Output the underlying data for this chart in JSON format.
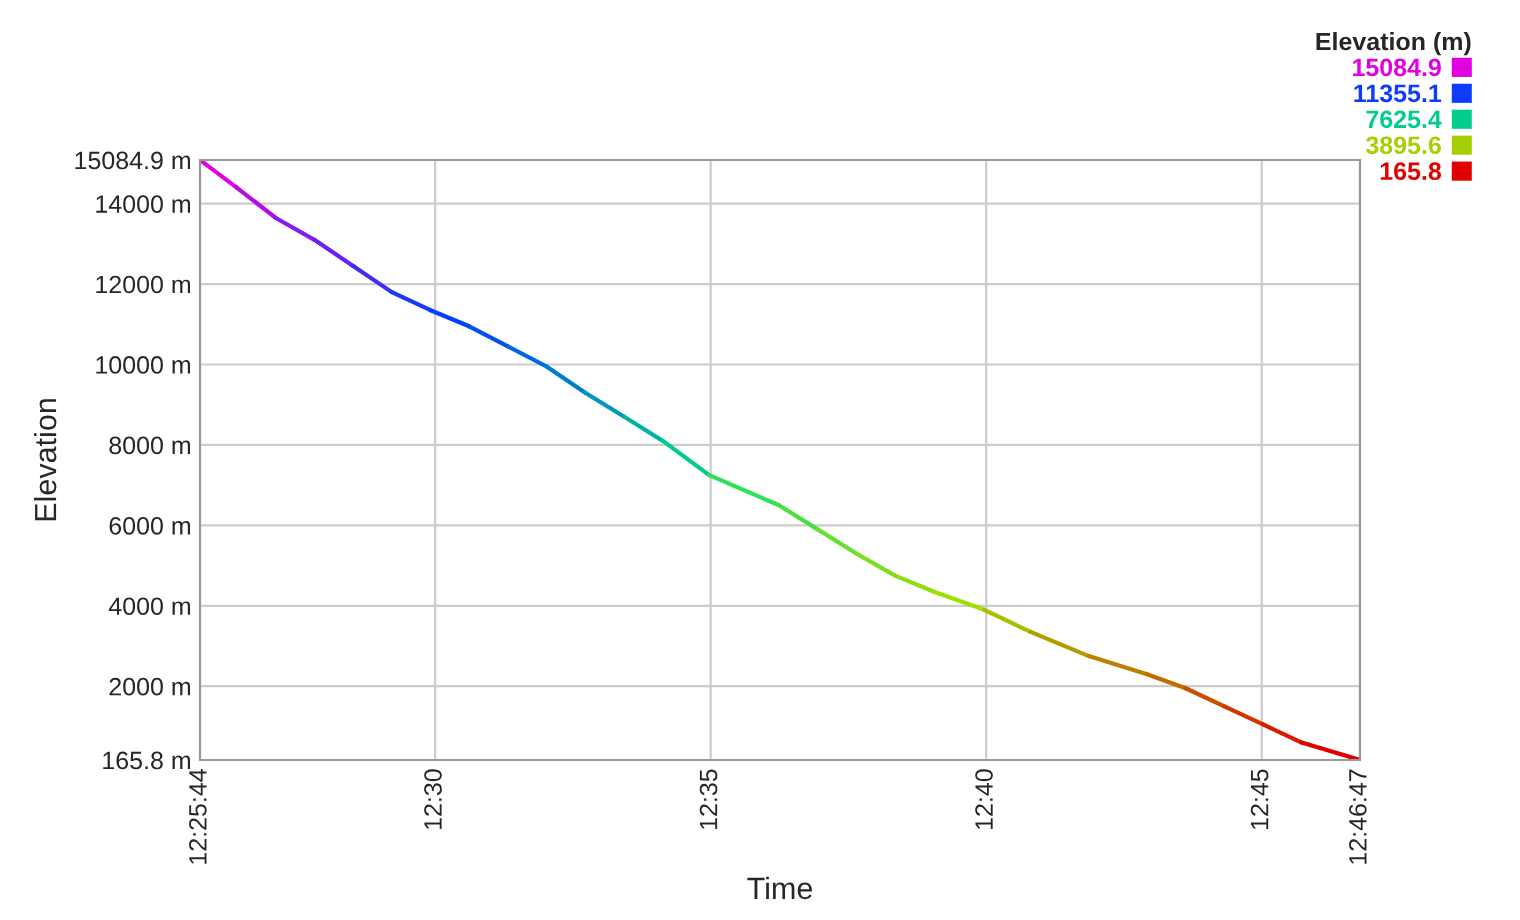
{
  "chart_data": {
    "type": "line",
    "xlabel": "Time",
    "ylabel": "Elevation",
    "clabel": "Elevation (m)",
    "cticks": [
      15084.9,
      11355.1,
      7625.4,
      3895.6,
      165.8
    ],
    "series": [
      {
        "x": [
          12.428889,
          12.44
        ],
        "values": [
          15084.9,
          14400
        ],
        "color": "#e000e0"
      },
      {
        "x": [
          12.44,
          12.4517
        ],
        "values": [
          14400,
          13650
        ],
        "color": "#b70ce6"
      },
      {
        "x": [
          12.4517,
          12.4635
        ],
        "values": [
          13650,
          13100
        ],
        "color": "#8a19ec"
      },
      {
        "x": [
          12.4635,
          12.4752
        ],
        "values": [
          13100,
          12450
        ],
        "color": "#6922f0"
      },
      {
        "x": [
          12.4752,
          12.4869
        ],
        "values": [
          12450,
          11800
        ],
        "color": "#422df6"
      },
      {
        "x": [
          12.4869,
          12.4986
        ],
        "values": [
          11800,
          11350
        ],
        "color": "#1b38fb"
      },
      {
        "x": [
          12.4986,
          12.5103
        ],
        "values": [
          11350,
          10950
        ],
        "color": "#0040ff"
      },
      {
        "x": [
          12.5103,
          12.522
        ],
        "values": [
          10950,
          10450
        ],
        "color": "#0051f1"
      },
      {
        "x": [
          12.522,
          12.5337
        ],
        "values": [
          10450,
          9950
        ],
        "color": "#0067e0"
      },
      {
        "x": [
          12.5337,
          12.5454
        ],
        "values": [
          9950,
          9300
        ],
        "color": "#007ccf"
      },
      {
        "x": [
          12.5454,
          12.5572
        ],
        "values": [
          9300,
          8700
        ],
        "color": "#0098b9"
      },
      {
        "x": [
          12.5572,
          12.5689
        ],
        "values": [
          8700,
          8100
        ],
        "color": "#00b2a5"
      },
      {
        "x": [
          12.5689,
          12.5829
        ],
        "values": [
          8100,
          7250
        ],
        "color": "#00cc90"
      },
      {
        "x": [
          12.5829,
          12.604
        ],
        "values": [
          7250,
          6500
        ],
        "color": "#30e059"
      },
      {
        "x": [
          12.604,
          12.6157
        ],
        "values": [
          6500,
          5900
        ],
        "color": "#4ae045"
      },
      {
        "x": [
          12.6157,
          12.6274
        ],
        "values": [
          5900,
          5300
        ],
        "color": "#64e030"
      },
      {
        "x": [
          12.6274,
          12.6391
        ],
        "values": [
          5300,
          4750
        ],
        "color": "#7be01d"
      },
      {
        "x": [
          12.6391,
          12.6509
        ],
        "values": [
          4750,
          4350
        ],
        "color": "#8de010"
      },
      {
        "x": [
          12.6509,
          12.6661
        ],
        "values": [
          4350,
          3900
        ],
        "color": "#a0e000"
      },
      {
        "x": [
          12.6661,
          12.6801
        ],
        "values": [
          3900,
          3350
        ],
        "color": "#a9bf00"
      },
      {
        "x": [
          12.6801,
          12.6977
        ],
        "values": [
          3350,
          2750
        ],
        "color": "#b49b00"
      },
      {
        "x": [
          12.6977,
          12.7153
        ],
        "values": [
          2750,
          2300
        ],
        "color": "#bb8000"
      },
      {
        "x": [
          12.7153,
          12.727
        ],
        "values": [
          2300,
          1950
        ],
        "color": "#c16b00"
      },
      {
        "x": [
          12.727,
          12.7387
        ],
        "values": [
          1950,
          1500
        ],
        "color": "#c95000"
      },
      {
        "x": [
          12.7387,
          12.7504
        ],
        "values": [
          1500,
          1050
        ],
        "color": "#d13500"
      },
      {
        "x": [
          12.7504,
          12.7621
        ],
        "values": [
          1050,
          600
        ],
        "color": "#d91a00"
      },
      {
        "x": [
          12.7621,
          12.779722
        ],
        "values": [
          600,
          165.8
        ],
        "color": "#e00000"
      }
    ],
    "xlim": [
      12.428889,
      12.779722
    ],
    "xticks": [
      {
        "value": 12.428889,
        "label": "12:25:44"
      },
      {
        "value": 12.5,
        "label": "12:30"
      },
      {
        "value": 12.583333,
        "label": "12:35"
      },
      {
        "value": 12.666667,
        "label": "12:40"
      },
      {
        "value": 12.75,
        "label": "12:45"
      },
      {
        "value": 12.779722,
        "label": "12:46:47"
      }
    ],
    "ylim": [
      165.8,
      15084.9
    ],
    "yticks": [
      {
        "value": 165.8,
        "label": "165.8 m"
      },
      {
        "value": 2000,
        "label": "2000 m"
      },
      {
        "value": 4000,
        "label": "4000 m"
      },
      {
        "value": 6000,
        "label": "6000 m"
      },
      {
        "value": 8000,
        "label": "8000 m"
      },
      {
        "value": 10000,
        "label": "10000 m"
      },
      {
        "value": 12000,
        "label": "12000 m"
      },
      {
        "value": 14000,
        "label": "14000 m"
      },
      {
        "value": 15084.9,
        "label": "15084.9 m"
      }
    ],
    "grid": true
  }
}
